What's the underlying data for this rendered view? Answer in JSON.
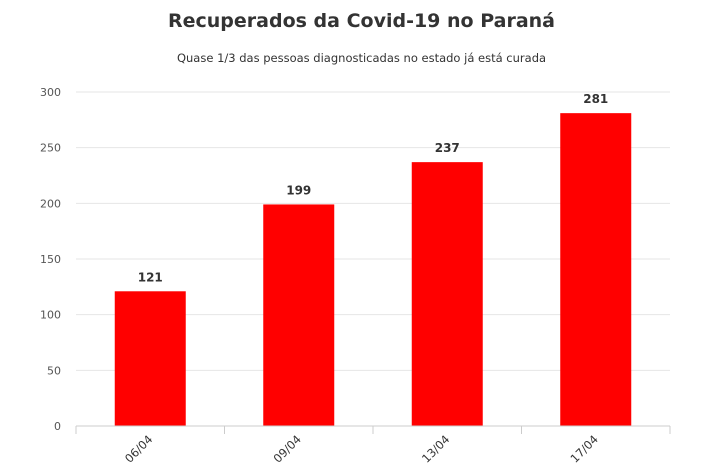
{
  "chart_data": {
    "type": "bar",
    "title": "Recuperados da Covid-19 no Paraná",
    "subtitle": "Quase 1/3 das pessoas diagnosticadas no estado já está curada",
    "categories": [
      "06/04",
      "09/04",
      "13/04",
      "17/04"
    ],
    "values": [
      121,
      199,
      237,
      281
    ],
    "data_labels": [
      "121",
      "199",
      "237",
      "281"
    ],
    "yticks": [
      "0",
      "50",
      "100",
      "150",
      "200",
      "250",
      "300"
    ],
    "ytick_values": [
      0,
      50,
      100,
      150,
      200,
      250,
      300
    ],
    "ylim": [
      0,
      300
    ],
    "grid": true,
    "bar_color": "#ff0000",
    "grid_color": "#e6e6e6",
    "axis_color": "#cccccc"
  }
}
